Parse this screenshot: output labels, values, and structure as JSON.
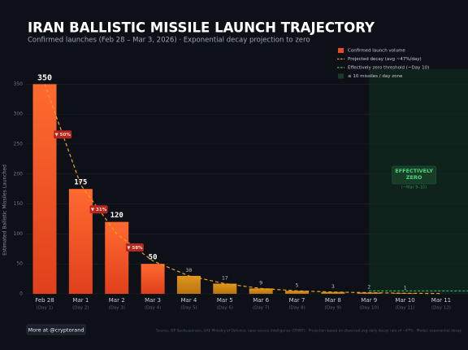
{
  "chart_data": {
    "type": "bar",
    "title": "IRAN BALLISTIC MISSILE LAUNCH TRAJECTORY",
    "subtitle": "Confirmed launches (Feb 28 – Mar 3, 2026) · Exponential decay projection to zero",
    "y_label": "Estimated Ballistic Missiles Launched",
    "categories": [
      "Feb 28",
      "Mar 1",
      "Mar 2",
      "Mar 3",
      "Mar 4",
      "Mar 5",
      "Mar 6",
      "Mar 7",
      "Mar 8",
      "Mar 9",
      "Mar 10",
      "Mar 11"
    ],
    "day_labels": [
      "(Day 1)",
      "(Day 2)",
      "(Day 3)",
      "(Day 4)",
      "(Day 5)",
      "(Day 6)",
      "(Day 7)",
      "(Day 8)",
      "(Day 9)",
      "(Day 10)",
      "(Day 11)",
      "(Day 12)"
    ],
    "series": [
      {
        "name": "Confirmed launch volume",
        "color": "#f04a22",
        "values": [
          350,
          175,
          120,
          50,
          null,
          null,
          null,
          null,
          null,
          null,
          null,
          null
        ]
      },
      {
        "color": "#d48a16",
        "values": [
          null,
          null,
          null,
          null,
          30,
          17,
          9,
          5,
          3,
          2,
          1,
          null
        ]
      }
    ],
    "decay": {
      "name": "Projected decay (avg ~47%/day)",
      "color": "#f0a020",
      "values": [
        350,
        182,
        100,
        55,
        30,
        17,
        9,
        5,
        3,
        2,
        1,
        0.5
      ]
    },
    "threshold": {
      "name": "Effectively zero threshold (~Day 10)",
      "color": "#3ec46d",
      "value": 5,
      "start": "Mar 9"
    },
    "zone": {
      "name": "≤ 10 missiles / day zone",
      "color": "#12301f",
      "start": "Mar 9",
      "label": "EFFECTIVELY ZERO",
      "sublabel": "(~Mar 9–10)"
    },
    "drops": [
      {
        "label": "▼ 50%",
        "from": 0
      },
      {
        "label": "▼ 31%",
        "from": 1
      },
      {
        "label": "▼ 58%",
        "from": 2
      }
    ],
    "ylim": [
      0,
      375
    ],
    "yticks": [
      0,
      50,
      100,
      150,
      200,
      250,
      300,
      350
    ],
    "grid": true
  },
  "footer": {
    "button": "More at @cryptorand",
    "source": "Source: ISP Spokesperson, UAE Ministry of Defence, open source intelligence (OSINT) · Projection based on observed avg daily decay rate of ~47% · Model: exponential decay"
  }
}
